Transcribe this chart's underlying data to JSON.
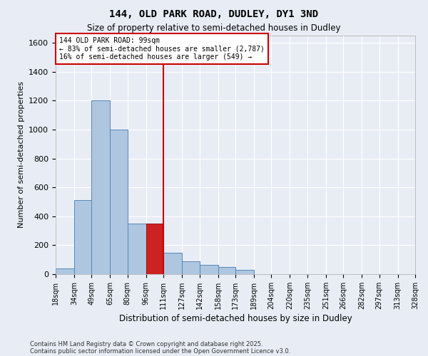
{
  "title": "144, OLD PARK ROAD, DUDLEY, DY1 3ND",
  "subtitle": "Size of property relative to semi-detached houses in Dudley",
  "xlabel": "Distribution of semi-detached houses by size in Dudley",
  "ylabel": "Number of semi-detached properties",
  "footnote1": "Contains HM Land Registry data © Crown copyright and database right 2025.",
  "footnote2": "Contains public sector information licensed under the Open Government Licence v3.0.",
  "annotation_title": "144 OLD PARK ROAD: 99sqm",
  "annotation_line1": "← 83% of semi-detached houses are smaller (2,787)",
  "annotation_line2": "16% of semi-detached houses are larger (549) →",
  "property_size": 99,
  "red_line_x": 111,
  "bin_edges": [
    18,
    34,
    49,
    65,
    80,
    96,
    111,
    127,
    142,
    158,
    173,
    189,
    204,
    220,
    235,
    251,
    266,
    282,
    297,
    313,
    328
  ],
  "bin_counts": [
    40,
    510,
    1200,
    1000,
    350,
    350,
    150,
    90,
    65,
    50,
    30,
    0,
    0,
    0,
    0,
    0,
    0,
    0,
    0,
    0
  ],
  "red_bar_index": 5,
  "bar_color": "#aec6e0",
  "bar_edge_color": "#5588bb",
  "red_bar_color": "#cc2222",
  "red_bar_edge_color": "#991111",
  "red_line_color": "#cc0000",
  "annotation_box_color": "#cc0000",
  "background_color": "#e8edf5",
  "plot_background_color": "#e8edf5",
  "grid_color": "#ffffff",
  "ylim": [
    0,
    1650
  ],
  "yticks": [
    0,
    200,
    400,
    600,
    800,
    1000,
    1200,
    1400,
    1600
  ]
}
